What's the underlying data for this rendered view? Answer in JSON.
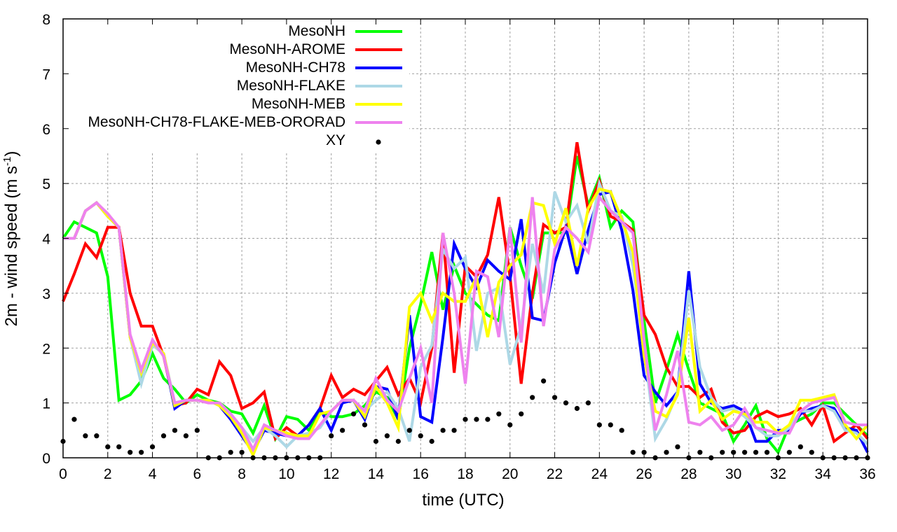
{
  "chart_data": {
    "type": "line",
    "title": "",
    "xlabel": "time (UTC)",
    "ylabel_main": "2m - wind speed  (m s",
    "ylabel_sup": "-1",
    "ylabel_close": ")",
    "xlim": [
      0,
      36
    ],
    "ylim": [
      0,
      8
    ],
    "grid": true,
    "legend_position": "top-left",
    "x_ticks": [
      "0",
      "2",
      "4",
      "6",
      "8",
      "10",
      "12",
      "14",
      "16",
      "18",
      "20",
      "22",
      "24",
      "26",
      "28",
      "30",
      "32",
      "34",
      "36"
    ],
    "y_ticks": [
      "0",
      "1",
      "2",
      "3",
      "4",
      "5",
      "6",
      "7",
      "8"
    ],
    "x": [
      0,
      0.5,
      1,
      1.5,
      2,
      2.5,
      3,
      3.5,
      4,
      4.5,
      5,
      5.5,
      6,
      6.5,
      7,
      7.5,
      8,
      8.5,
      9,
      9.5,
      10,
      10.5,
      11,
      11.5,
      12,
      12.5,
      13,
      13.5,
      14,
      14.5,
      15,
      15.5,
      16,
      16.5,
      17,
      17.5,
      18,
      18.5,
      19,
      19.5,
      20,
      20.5,
      21,
      21.5,
      22,
      22.5,
      23,
      23.5,
      24,
      24.5,
      25,
      25.5,
      26,
      26.5,
      27,
      27.5,
      28,
      28.5,
      29,
      29.5,
      30,
      30.5,
      31,
      31.5,
      32,
      32.5,
      33,
      33.5,
      34,
      34.5,
      35,
      35.5,
      36
    ],
    "series": [
      {
        "name": "MesoNH",
        "color": "#00ff00",
        "style": "line",
        "values": [
          4.0,
          4.3,
          4.2,
          4.1,
          3.3,
          1.05,
          1.15,
          1.4,
          1.9,
          1.45,
          1.25,
          1.0,
          1.15,
          1.05,
          1.0,
          0.85,
          0.8,
          0.45,
          0.95,
          0.35,
          0.75,
          0.7,
          0.5,
          0.85,
          0.75,
          0.75,
          0.8,
          0.95,
          1.2,
          1.1,
          0.7,
          2.0,
          2.8,
          3.75,
          2.7,
          3.5,
          3.0,
          2.8,
          2.6,
          2.5,
          4.2,
          3.5,
          2.9,
          4.1,
          4.1,
          4.1,
          5.5,
          4.6,
          5.1,
          4.2,
          4.5,
          4.3,
          2.5,
          1.0,
          1.6,
          2.25,
          1.6,
          1.0,
          0.9,
          0.8,
          0.3,
          0.6,
          0.95,
          0.35,
          0.1,
          0.6,
          0.7,
          0.8,
          1.0,
          1.0,
          0.8,
          0.6,
          0.4
        ]
      },
      {
        "name": "MesoNH-AROME",
        "color": "#ff0000",
        "style": "line",
        "values": [
          2.85,
          3.35,
          3.9,
          3.65,
          4.2,
          4.2,
          3.0,
          2.4,
          2.4,
          1.85,
          0.95,
          1.0,
          1.25,
          1.15,
          1.75,
          1.5,
          0.9,
          1.0,
          1.2,
          0.35,
          0.55,
          0.4,
          0.6,
          0.9,
          1.5,
          1.1,
          1.25,
          1.15,
          1.4,
          1.65,
          1.15,
          1.45,
          1.0,
          2.0,
          4.1,
          1.55,
          3.5,
          3.3,
          3.7,
          4.75,
          3.3,
          1.35,
          3.0,
          4.25,
          4.1,
          4.2,
          5.75,
          4.5,
          5.05,
          4.4,
          4.3,
          4.15,
          2.6,
          2.25,
          1.65,
          1.3,
          1.3,
          1.1,
          1.25,
          0.65,
          0.45,
          0.5,
          0.75,
          0.85,
          0.75,
          0.8,
          0.9,
          0.6,
          0.95,
          0.3,
          0.45,
          0.6,
          0.35
        ]
      },
      {
        "name": "MesoNH-CH78",
        "color": "#0000ff",
        "style": "line",
        "values": [
          4.0,
          4.0,
          4.5,
          4.65,
          4.4,
          4.2,
          2.2,
          1.55,
          2.1,
          1.9,
          0.9,
          1.05,
          1.05,
          1.05,
          0.95,
          0.7,
          0.4,
          0.1,
          0.5,
          0.45,
          0.4,
          0.4,
          0.6,
          0.9,
          0.5,
          1.0,
          1.05,
          0.7,
          1.3,
          1.25,
          0.7,
          2.6,
          0.75,
          0.65,
          2.2,
          3.9,
          3.45,
          3.1,
          3.6,
          3.4,
          3.25,
          4.35,
          2.55,
          2.5,
          3.55,
          4.2,
          3.35,
          4.15,
          4.8,
          4.85,
          4.15,
          3.05,
          1.5,
          1.2,
          0.95,
          1.2,
          3.4,
          1.35,
          1.0,
          0.9,
          0.95,
          0.85,
          0.3,
          0.3,
          0.5,
          0.5,
          0.8,
          0.9,
          0.95,
          0.9,
          0.55,
          0.5,
          0.1
        ]
      },
      {
        "name": "MesoNH-FLAKE",
        "color": "#add8e6",
        "style": "line",
        "values": [
          4.0,
          4.0,
          4.5,
          4.65,
          4.4,
          4.2,
          2.2,
          1.35,
          2.05,
          1.9,
          1.0,
          1.05,
          1.05,
          1.05,
          0.95,
          0.8,
          0.55,
          0.3,
          0.55,
          0.4,
          0.2,
          0.4,
          0.45,
          0.55,
          0.85,
          1.05,
          1.05,
          0.85,
          1.05,
          1.2,
          0.9,
          0.3,
          1.65,
          2.05,
          3.8,
          3.45,
          3.65,
          1.95,
          3.0,
          3.1,
          1.7,
          2.4,
          3.9,
          3.0,
          4.85,
          4.3,
          4.6,
          3.9,
          5.0,
          4.5,
          4.4,
          3.5,
          2.0,
          0.35,
          0.7,
          1.2,
          3.05,
          1.65,
          1.1,
          0.85,
          0.9,
          0.75,
          0.55,
          0.4,
          0.4,
          0.55,
          0.85,
          0.85,
          0.95,
          0.85,
          0.5,
          0.45,
          0.25
        ]
      },
      {
        "name": "MesoNH-MEB",
        "color": "#ffff00",
        "style": "line",
        "values": [
          4.0,
          4.0,
          4.5,
          4.65,
          4.4,
          4.2,
          2.2,
          1.55,
          2.1,
          1.9,
          0.95,
          1.05,
          1.05,
          1.05,
          0.95,
          0.75,
          0.45,
          0.05,
          0.55,
          0.5,
          0.45,
          0.4,
          0.4,
          0.8,
          0.85,
          1.05,
          1.05,
          0.75,
          1.3,
          1.0,
          0.55,
          2.75,
          3.0,
          2.5,
          3.0,
          2.85,
          2.85,
          3.3,
          2.2,
          3.2,
          3.5,
          3.7,
          4.65,
          4.6,
          3.9,
          4.55,
          3.5,
          4.55,
          4.9,
          4.85,
          4.35,
          3.75,
          1.85,
          0.85,
          0.75,
          1.15,
          2.55,
          0.85,
          1.05,
          0.7,
          0.85,
          0.8,
          0.65,
          0.65,
          0.45,
          0.6,
          1.05,
          1.05,
          1.1,
          1.15,
          0.6,
          0.35,
          0.6
        ]
      },
      {
        "name": "MesoNH-CH78-FLAKE-MEB-ORORAD",
        "color": "#ee82ee",
        "style": "line",
        "values": [
          4.0,
          4.0,
          4.5,
          4.65,
          4.45,
          4.2,
          2.25,
          1.6,
          2.15,
          1.85,
          1.0,
          1.05,
          1.05,
          1.0,
          1.0,
          0.8,
          0.55,
          0.15,
          0.6,
          0.5,
          0.4,
          0.35,
          0.35,
          0.6,
          0.85,
          1.05,
          1.05,
          0.85,
          1.45,
          1.05,
          0.85,
          1.45,
          2.0,
          1.0,
          4.1,
          3.0,
          1.35,
          3.4,
          3.3,
          2.2,
          4.2,
          2.1,
          4.75,
          2.4,
          3.8,
          4.2,
          4.0,
          3.75,
          4.75,
          4.5,
          4.3,
          4.1,
          2.15,
          0.5,
          1.15,
          1.95,
          0.65,
          0.6,
          0.75,
          0.5,
          0.6,
          0.9,
          0.55,
          0.5,
          0.45,
          0.45,
          0.85,
          1.0,
          1.05,
          1.1,
          0.65,
          0.6,
          0.6
        ]
      },
      {
        "name": "XY",
        "color": "#000000",
        "style": "points",
        "values": [
          0.3,
          0.7,
          0.4,
          0.4,
          0.2,
          0.2,
          0.1,
          0.1,
          0.2,
          0.4,
          0.5,
          0.4,
          0.5,
          0,
          0,
          0.1,
          0.1,
          0,
          0,
          0,
          0,
          0,
          0,
          0,
          0.4,
          0.5,
          0.8,
          0.6,
          0.3,
          0.4,
          0.3,
          0.5,
          0.4,
          0.3,
          0.5,
          0.5,
          0.7,
          0.7,
          0.7,
          0.8,
          0.6,
          0.8,
          1.1,
          1.4,
          1.1,
          1.0,
          0.9,
          1.0,
          0.6,
          0.6,
          0.5,
          0.1,
          0.1,
          0,
          0.1,
          0.2,
          0,
          0.1,
          0,
          0.1,
          0.1,
          0.1,
          0.1,
          0.1,
          0,
          0.1,
          0.2,
          0.1,
          0,
          0,
          0,
          0,
          0
        ]
      }
    ]
  }
}
